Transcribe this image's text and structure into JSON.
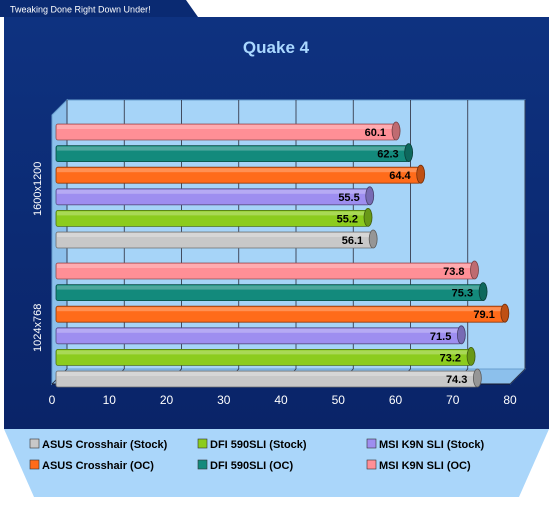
{
  "header_tab": "Tweaking Done Right Down Under!",
  "chart_data": {
    "type": "bar",
    "orientation": "horizontal",
    "title": "Quake 4",
    "categories": [
      "1600x1200",
      "1024x768"
    ],
    "series": [
      {
        "name": "ASUS Crosshair (Stock)",
        "color": "#c8c8c8",
        "values": [
          56.1,
          74.3
        ]
      },
      {
        "name": "DFI 590SLI (Stock)",
        "color": "#8ccc1e",
        "values": [
          55.2,
          73.2
        ]
      },
      {
        "name": "MSI K9N SLI (Stock)",
        "color": "#9e8ef0",
        "values": [
          55.5,
          71.5
        ]
      },
      {
        "name": "ASUS Crosshair (OC)",
        "color": "#ff6b1a",
        "values": [
          64.4,
          79.1
        ]
      },
      {
        "name": "DFI 590SLI (OC)",
        "color": "#138a7c",
        "values": [
          62.3,
          75.3
        ]
      },
      {
        "name": "MSI K9N SLI (OC)",
        "color": "#ff8f96",
        "values": [
          60.1,
          73.8
        ]
      }
    ],
    "xlim": [
      0,
      80
    ],
    "xticks": [
      "0",
      "10",
      "20",
      "30",
      "40",
      "50",
      "60",
      "70",
      "80"
    ],
    "grid": true,
    "legend_position": "bottom"
  },
  "colors": {
    "frame": "#0a2a72",
    "plot_back": "#a6d4f8",
    "plot_floor": "#8cc0ec",
    "grid": "#2a2a3a",
    "legend_bg": "#aad6fa",
    "title": "#aad8ff"
  }
}
